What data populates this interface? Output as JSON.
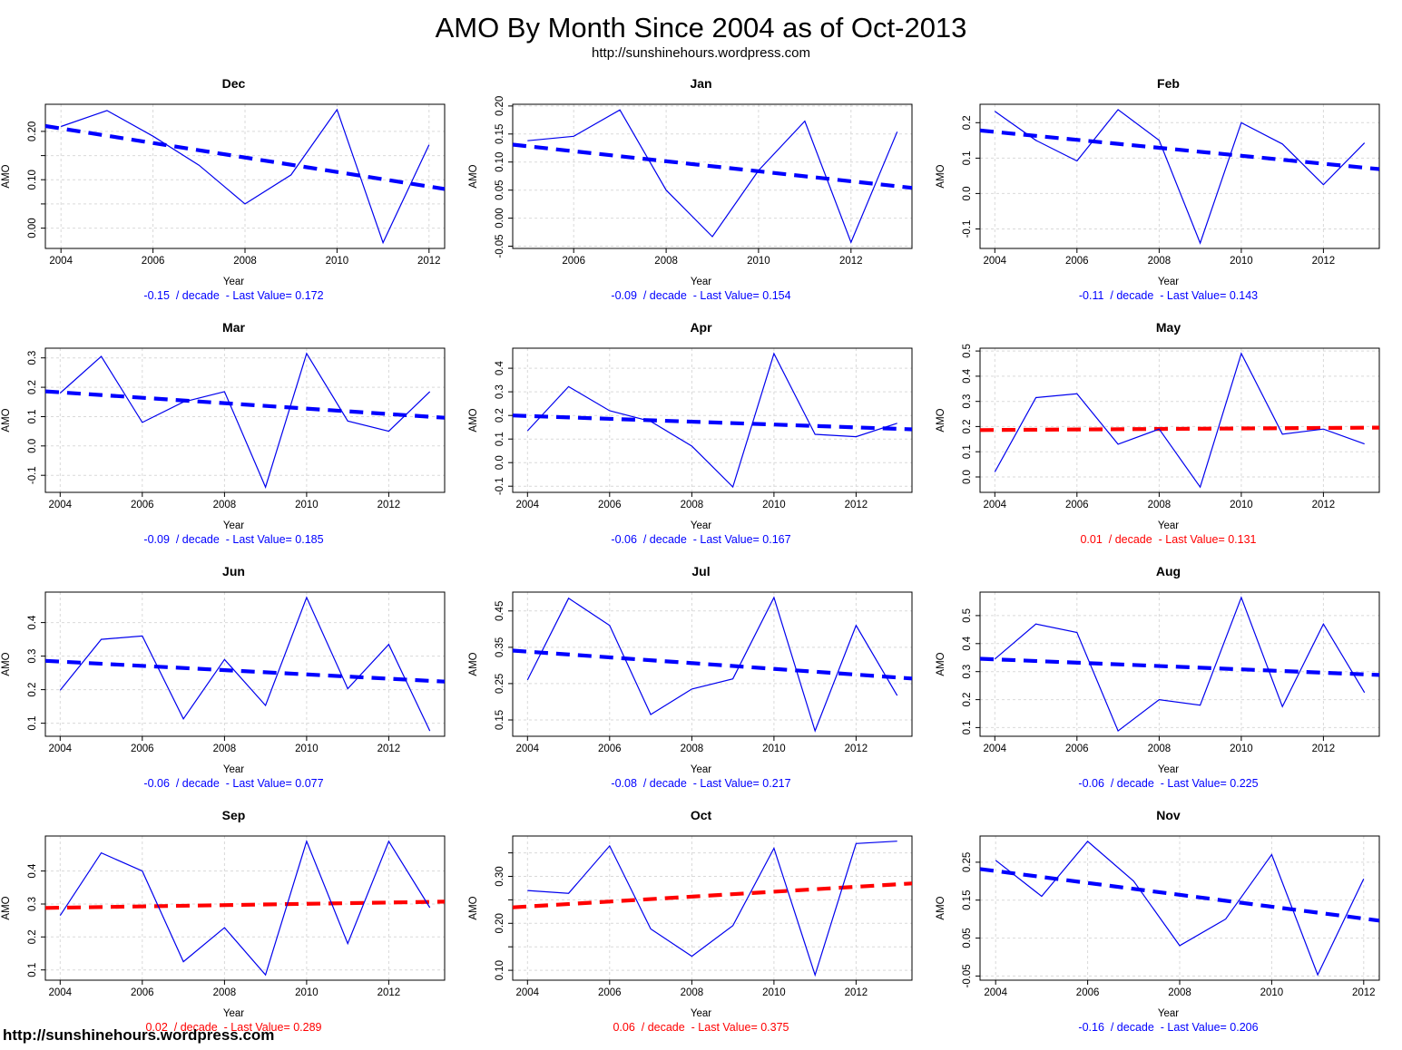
{
  "header": {
    "title": "AMO By Month Since 2004 as of Oct-2013",
    "subtitle": "http://sunshinehours.wordpress.com"
  },
  "footer": {
    "watermark": "http://sunshinehours.wordpress.com"
  },
  "axis": {
    "x_label": "Year",
    "y_label": "AMO"
  },
  "colors": {
    "data_line": "#0000EE",
    "trend_blue": "#0000FF",
    "trend_red": "#FF0000",
    "grid": "#D9D9D9",
    "frame": "#000000"
  },
  "chart_data": [
    {
      "type": "line",
      "title": "Dec",
      "xlabel": "Year",
      "ylabel": "AMO",
      "x": [
        2004,
        2005,
        2006,
        2007,
        2008,
        2009,
        2010,
        2011,
        2012
      ],
      "values": [
        0.21,
        0.243,
        0.19,
        0.13,
        0.05,
        0.11,
        0.245,
        -0.03,
        0.172
      ],
      "trend_per_decade": -0.15,
      "last_value": 0.172,
      "trend_color": "blue",
      "caption": "-0.15  / decade  - Last Value= 0.172",
      "xlim": [
        2003.66,
        2012.34
      ],
      "ylim": [
        -0.042,
        0.256
      ],
      "xticks": [
        2004,
        2006,
        2008,
        2010,
        2012
      ],
      "yticks": [
        0.0,
        0.1,
        0.2
      ],
      "ytick_labels": [
        "0.00",
        "0.10",
        "0.20"
      ],
      "grid_y": [
        0.0,
        0.05,
        0.1,
        0.15,
        0.2
      ],
      "trend_line": {
        "y": [
          0.211,
          0.081
        ]
      }
    },
    {
      "type": "line",
      "title": "Jan",
      "xlabel": "Year",
      "ylabel": "AMO",
      "x": [
        2005,
        2006,
        2007,
        2008,
        2009,
        2010,
        2011,
        2012,
        2013
      ],
      "values": [
        0.138,
        0.146,
        0.193,
        0.05,
        -0.033,
        0.085,
        0.173,
        -0.043,
        0.154
      ],
      "trend_per_decade": -0.09,
      "last_value": 0.154,
      "trend_color": "blue",
      "caption": "-0.09  / decade  - Last Value= 0.154",
      "xlim": [
        2004.68,
        2013.32
      ],
      "ylim": [
        -0.054,
        0.203
      ],
      "xticks": [
        2006,
        2008,
        2010,
        2012
      ],
      "yticks": [
        -0.05,
        0.0,
        0.05,
        0.1,
        0.15,
        0.2
      ],
      "ytick_labels": [
        "-0.05",
        "0.00",
        "0.05",
        "0.10",
        "0.15",
        "0.20"
      ],
      "trend_line": {
        "y": [
          0.131,
          0.054
        ]
      }
    },
    {
      "type": "line",
      "title": "Feb",
      "xlabel": "Year",
      "ylabel": "AMO",
      "x": [
        2004,
        2005,
        2006,
        2007,
        2008,
        2009,
        2010,
        2011,
        2012,
        2013
      ],
      "values": [
        0.232,
        0.15,
        0.092,
        0.237,
        0.15,
        -0.14,
        0.2,
        0.14,
        0.025,
        0.143
      ],
      "trend_per_decade": -0.11,
      "last_value": 0.143,
      "trend_color": "blue",
      "caption": "-0.11  / decade  - Last Value= 0.143",
      "xlim": [
        2003.64,
        2013.36
      ],
      "ylim": [
        -0.155,
        0.252
      ],
      "xticks": [
        2004,
        2006,
        2008,
        2010,
        2012
      ],
      "yticks": [
        -0.1,
        0.0,
        0.1,
        0.2
      ],
      "ytick_labels": [
        "-0.1",
        "0.0",
        "0.1",
        "0.2"
      ],
      "trend_line": {
        "y": [
          0.178,
          0.069
        ]
      }
    },
    {
      "type": "line",
      "title": "Mar",
      "xlabel": "Year",
      "ylabel": "AMO",
      "x": [
        2004,
        2005,
        2006,
        2007,
        2008,
        2009,
        2010,
        2011,
        2012,
        2013
      ],
      "values": [
        0.18,
        0.305,
        0.08,
        0.15,
        0.185,
        -0.14,
        0.315,
        0.085,
        0.05,
        0.185
      ],
      "trend_per_decade": -0.09,
      "last_value": 0.185,
      "trend_color": "blue",
      "caption": "-0.09  / decade  - Last Value= 0.185",
      "xlim": [
        2003.64,
        2013.36
      ],
      "ylim": [
        -0.158,
        0.333
      ],
      "xticks": [
        2004,
        2006,
        2008,
        2010,
        2012
      ],
      "yticks": [
        -0.1,
        0.0,
        0.1,
        0.2,
        0.3
      ],
      "ytick_labels": [
        "-0.1",
        "0.0",
        "0.1",
        "0.2",
        "0.3"
      ],
      "trend_line": {
        "y": [
          0.186,
          0.096
        ]
      }
    },
    {
      "type": "line",
      "title": "Apr",
      "xlabel": "Year",
      "ylabel": "AMO",
      "x": [
        2004,
        2005,
        2006,
        2007,
        2008,
        2009,
        2010,
        2011,
        2012,
        2013
      ],
      "values": [
        0.135,
        0.322,
        0.22,
        0.175,
        0.07,
        -0.103,
        0.462,
        0.12,
        0.11,
        0.167
      ],
      "trend_per_decade": -0.06,
      "last_value": 0.167,
      "trend_color": "blue",
      "caption": "-0.06  / decade  - Last Value= 0.167",
      "xlim": [
        2003.64,
        2013.36
      ],
      "ylim": [
        -0.126,
        0.485
      ],
      "xticks": [
        2004,
        2006,
        2008,
        2010,
        2012
      ],
      "yticks": [
        -0.1,
        0.0,
        0.1,
        0.2,
        0.3,
        0.4
      ],
      "ytick_labels": [
        "-0.1",
        "0.0",
        "0.1",
        "0.2",
        "0.3",
        "0.4"
      ],
      "trend_line": {
        "y": [
          0.2,
          0.141
        ]
      }
    },
    {
      "type": "line",
      "title": "May",
      "xlabel": "Year",
      "ylabel": "AMO",
      "x": [
        2004,
        2005,
        2006,
        2007,
        2008,
        2009,
        2010,
        2011,
        2012,
        2013
      ],
      "values": [
        0.02,
        0.315,
        0.33,
        0.13,
        0.19,
        -0.04,
        0.49,
        0.17,
        0.19,
        0.131
      ],
      "trend_per_decade": 0.01,
      "last_value": 0.131,
      "trend_color": "red",
      "caption": "0.01  / decade  - Last Value= 0.131",
      "xlim": [
        2003.64,
        2013.36
      ],
      "ylim": [
        -0.061,
        0.511
      ],
      "xticks": [
        2004,
        2006,
        2008,
        2010,
        2012
      ],
      "yticks": [
        0.0,
        0.1,
        0.2,
        0.3,
        0.4,
        0.5
      ],
      "ytick_labels": [
        "0.0",
        "0.1",
        "0.2",
        "0.3",
        "0.4",
        "0.5"
      ],
      "trend_line": {
        "y": [
          0.186,
          0.196
        ]
      }
    },
    {
      "type": "line",
      "title": "Jun",
      "xlabel": "Year",
      "ylabel": "AMO",
      "x": [
        2004,
        2005,
        2006,
        2007,
        2008,
        2009,
        2010,
        2011,
        2012,
        2013
      ],
      "values": [
        0.198,
        0.35,
        0.36,
        0.113,
        0.29,
        0.153,
        0.475,
        0.203,
        0.335,
        0.077
      ],
      "trend_per_decade": -0.06,
      "last_value": 0.077,
      "trend_color": "blue",
      "caption": "-0.06  / decade  - Last Value= 0.077",
      "xlim": [
        2003.64,
        2013.36
      ],
      "ylim": [
        0.061,
        0.491
      ],
      "xticks": [
        2004,
        2006,
        2008,
        2010,
        2012
      ],
      "yticks": [
        0.1,
        0.2,
        0.3,
        0.4
      ],
      "ytick_labels": [
        "0.1",
        "0.2",
        "0.3",
        "0.4"
      ],
      "trend_line": {
        "y": [
          0.286,
          0.224
        ]
      }
    },
    {
      "type": "line",
      "title": "Jul",
      "xlabel": "Year",
      "ylabel": "AMO",
      "x": [
        2004,
        2005,
        2006,
        2007,
        2008,
        2009,
        2010,
        2011,
        2012,
        2013
      ],
      "values": [
        0.26,
        0.485,
        0.41,
        0.165,
        0.235,
        0.263,
        0.487,
        0.12,
        0.41,
        0.217
      ],
      "trend_per_decade": -0.08,
      "last_value": 0.217,
      "trend_color": "blue",
      "caption": "-0.08  / decade  - Last Value= 0.217",
      "xlim": [
        2003.64,
        2013.36
      ],
      "ylim": [
        0.105,
        0.502
      ],
      "xticks": [
        2004,
        2006,
        2008,
        2010,
        2012
      ],
      "yticks": [
        0.15,
        0.25,
        0.35,
        0.45
      ],
      "ytick_labels": [
        "0.15",
        "0.25",
        "0.35",
        "0.45"
      ],
      "trend_line": {
        "y": [
          0.341,
          0.264
        ]
      }
    },
    {
      "type": "line",
      "title": "Aug",
      "xlabel": "Year",
      "ylabel": "AMO",
      "x": [
        2004,
        2005,
        2006,
        2007,
        2008,
        2009,
        2010,
        2011,
        2012,
        2013
      ],
      "values": [
        0.345,
        0.47,
        0.44,
        0.088,
        0.2,
        0.18,
        0.565,
        0.175,
        0.47,
        0.225
      ],
      "trend_per_decade": -0.06,
      "last_value": 0.225,
      "trend_color": "blue",
      "caption": "-0.06  / decade  - Last Value= 0.225",
      "xlim": [
        2003.64,
        2013.36
      ],
      "ylim": [
        0.069,
        0.584
      ],
      "xticks": [
        2004,
        2006,
        2008,
        2010,
        2012
      ],
      "yticks": [
        0.1,
        0.2,
        0.3,
        0.4,
        0.5
      ],
      "ytick_labels": [
        "0.1",
        "0.2",
        "0.3",
        "0.4",
        "0.5"
      ],
      "trend_line": {
        "y": [
          0.346,
          0.288
        ]
      }
    },
    {
      "type": "line",
      "title": "Sep",
      "xlabel": "Year",
      "ylabel": "AMO",
      "x": [
        2004,
        2005,
        2006,
        2007,
        2008,
        2009,
        2010,
        2011,
        2012,
        2013
      ],
      "values": [
        0.265,
        0.455,
        0.4,
        0.125,
        0.228,
        0.085,
        0.49,
        0.18,
        0.49,
        0.289
      ],
      "trend_per_decade": 0.02,
      "last_value": 0.289,
      "trend_color": "red",
      "caption": "0.02  / decade  - Last Value= 0.289",
      "xlim": [
        2003.64,
        2013.36
      ],
      "ylim": [
        0.069,
        0.506
      ],
      "xticks": [
        2004,
        2006,
        2008,
        2010,
        2012
      ],
      "yticks": [
        0.1,
        0.2,
        0.3,
        0.4
      ],
      "ytick_labels": [
        "0.1",
        "0.2",
        "0.3",
        "0.4"
      ],
      "trend_line": {
        "y": [
          0.288,
          0.307
        ]
      }
    },
    {
      "type": "line",
      "title": "Oct",
      "xlabel": "Year",
      "ylabel": "AMO",
      "x": [
        2004,
        2005,
        2006,
        2007,
        2008,
        2009,
        2010,
        2011,
        2012,
        2013
      ],
      "values": [
        0.27,
        0.264,
        0.365,
        0.188,
        0.13,
        0.195,
        0.36,
        0.09,
        0.37,
        0.375
      ],
      "trend_per_decade": 0.06,
      "last_value": 0.375,
      "trend_color": "red",
      "caption": "0.06  / decade  - Last Value= 0.375",
      "xlim": [
        2003.64,
        2013.36
      ],
      "ylim": [
        0.079,
        0.386
      ],
      "xticks": [
        2004,
        2006,
        2008,
        2010,
        2012
      ],
      "yticks": [
        0.1,
        0.2,
        0.3
      ],
      "ytick_labels": [
        "0.10",
        "0.20",
        "0.30"
      ],
      "grid_y": [
        0.1,
        0.15,
        0.2,
        0.25,
        0.3,
        0.35
      ],
      "trend_line": {
        "y": [
          0.234,
          0.285
        ]
      }
    },
    {
      "type": "line",
      "title": "Nov",
      "xlabel": "Year",
      "ylabel": "AMO",
      "x": [
        2004,
        2005,
        2006,
        2007,
        2008,
        2009,
        2010,
        2011,
        2012
      ],
      "values": [
        0.255,
        0.16,
        0.305,
        0.2,
        0.03,
        0.1,
        0.27,
        -0.047,
        0.206
      ],
      "trend_per_decade": -0.16,
      "last_value": 0.206,
      "trend_color": "blue",
      "caption": "-0.16  / decade  - Last Value= 0.206",
      "xlim": [
        2003.66,
        2012.34
      ],
      "ylim": [
        -0.061,
        0.319
      ],
      "xticks": [
        2004,
        2006,
        2008,
        2010,
        2012
      ],
      "yticks": [
        -0.05,
        0.05,
        0.15,
        0.25
      ],
      "ytick_labels": [
        "-0.05",
        "0.05",
        "0.15",
        "0.25"
      ],
      "trend_line": {
        "y": [
          0.232,
          0.096
        ]
      }
    }
  ]
}
